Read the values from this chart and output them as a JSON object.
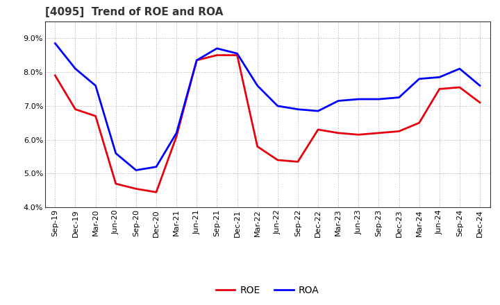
{
  "title": "[4095]  Trend of ROE and ROA",
  "labels": [
    "Sep-19",
    "Dec-19",
    "Mar-20",
    "Jun-20",
    "Sep-20",
    "Dec-20",
    "Mar-21",
    "Jun-21",
    "Sep-21",
    "Dec-21",
    "Mar-22",
    "Jun-22",
    "Sep-22",
    "Dec-22",
    "Mar-23",
    "Jun-23",
    "Sep-23",
    "Dec-23",
    "Mar-24",
    "Jun-24",
    "Sep-24",
    "Dec-24"
  ],
  "ROE": [
    7.9,
    6.9,
    6.7,
    4.7,
    4.55,
    4.45,
    6.1,
    8.35,
    8.5,
    8.5,
    5.8,
    5.4,
    5.35,
    6.3,
    6.2,
    6.15,
    6.2,
    6.25,
    6.5,
    7.5,
    7.55,
    7.1
  ],
  "ROA": [
    8.85,
    8.1,
    7.6,
    5.6,
    5.1,
    5.2,
    6.2,
    8.35,
    8.7,
    8.55,
    7.6,
    7.0,
    6.9,
    6.85,
    7.15,
    7.2,
    7.2,
    7.25,
    7.8,
    7.85,
    8.1,
    7.6
  ],
  "ROE_color": "#e8000d",
  "ROA_color": "#0000ff",
  "bg_color": "#ffffff",
  "plot_bg_color": "#ffffff",
  "grid_color": "#aaaaaa",
  "ylim": [
    4.0,
    9.5
  ],
  "yticks": [
    4.0,
    5.0,
    6.0,
    7.0,
    8.0,
    9.0
  ],
  "title_fontsize": 11,
  "legend_fontsize": 10,
  "tick_fontsize": 8,
  "line_width": 2.0
}
